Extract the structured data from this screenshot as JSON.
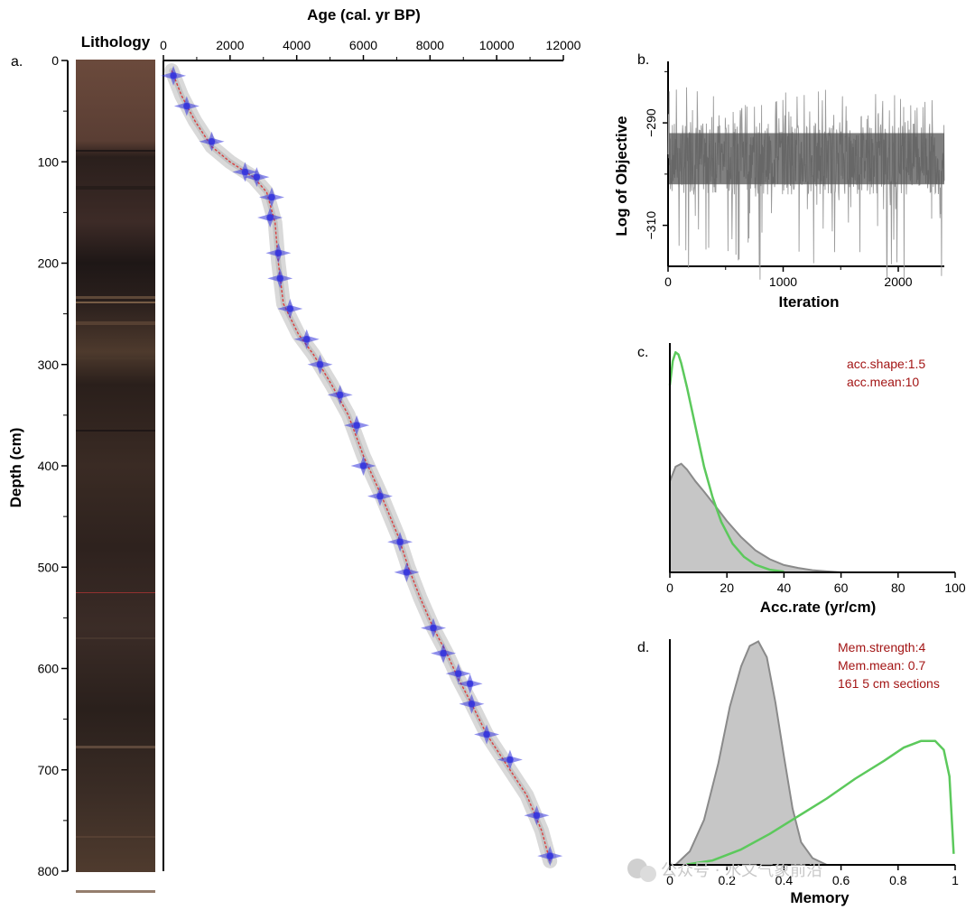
{
  "watermark": "公众号 · 水文气象前沿",
  "panels": {
    "a": {
      "letter": "a.",
      "lithology_label": "Lithology"
    },
    "b": {
      "letter": "b."
    },
    "c": {
      "letter": "c.",
      "annotations": [
        "acc.shape:1.5",
        "acc.mean:10"
      ]
    },
    "d": {
      "letter": "d.",
      "annotations": [
        "Mem.strength:4",
        "Mem.mean: 0.7",
        "161 5 cm sections"
      ]
    }
  },
  "colors": {
    "prior": "#5cc95c",
    "posterior_fill": "#c6c6c6",
    "posterior_line": "#8a8a8a",
    "dates": "#3333dd",
    "model": "#d94040",
    "annotation": "#a31515"
  },
  "chart_data": [
    {
      "id": "a",
      "type": "scatter",
      "title": "",
      "xlabel": "Age (cal. yr BP)",
      "ylabel": "Depth (cm)",
      "xlim": [
        0,
        12000
      ],
      "ylim": [
        800,
        0
      ],
      "x_ticks": [
        "0",
        "2000",
        "4000",
        "6000",
        "8000",
        "10000",
        "12000"
      ],
      "y_ticks": [
        "0",
        "100",
        "200",
        "300",
        "400",
        "500",
        "600",
        "700",
        "800"
      ],
      "x_tick_values": [
        0,
        2000,
        4000,
        6000,
        8000,
        10000,
        12000
      ],
      "y_tick_values": [
        0,
        100,
        200,
        300,
        400,
        500,
        600,
        700,
        800
      ],
      "dates": [
        {
          "age": 300,
          "depth": 15
        },
        {
          "age": 700,
          "depth": 45
        },
        {
          "age": 1450,
          "depth": 80
        },
        {
          "age": 2450,
          "depth": 110
        },
        {
          "age": 2800,
          "depth": 115
        },
        {
          "age": 3250,
          "depth": 135
        },
        {
          "age": 3200,
          "depth": 155
        },
        {
          "age": 3450,
          "depth": 190
        },
        {
          "age": 3500,
          "depth": 215
        },
        {
          "age": 3800,
          "depth": 245
        },
        {
          "age": 4300,
          "depth": 275
        },
        {
          "age": 4700,
          "depth": 300
        },
        {
          "age": 5300,
          "depth": 330
        },
        {
          "age": 5800,
          "depth": 360
        },
        {
          "age": 6000,
          "depth": 400
        },
        {
          "age": 6500,
          "depth": 430
        },
        {
          "age": 7100,
          "depth": 475
        },
        {
          "age": 7300,
          "depth": 505
        },
        {
          "age": 8100,
          "depth": 560
        },
        {
          "age": 8400,
          "depth": 585
        },
        {
          "age": 8850,
          "depth": 605
        },
        {
          "age": 9200,
          "depth": 615
        },
        {
          "age": 9250,
          "depth": 635
        },
        {
          "age": 9700,
          "depth": 665
        },
        {
          "age": 10400,
          "depth": 690
        },
        {
          "age": 11200,
          "depth": 745
        },
        {
          "age": 11600,
          "depth": 785
        }
      ],
      "model_x": [
        250,
        550,
        950,
        1450,
        2000,
        2700,
        3100,
        3350,
        3450,
        3600,
        4050,
        4500,
        5050,
        5550,
        6000,
        6550,
        7050,
        7350,
        7700,
        8100,
        8500,
        8850,
        9250,
        9700,
        10300,
        10900,
        11350,
        11600
      ],
      "model_y": [
        10,
        35,
        60,
        85,
        100,
        115,
        130,
        160,
        200,
        240,
        270,
        290,
        320,
        350,
        390,
        430,
        470,
        500,
        530,
        560,
        585,
        610,
        635,
        665,
        695,
        725,
        760,
        790
      ]
    },
    {
      "id": "b",
      "type": "line",
      "xlabel": "Iteration",
      "ylabel": "Log of Objective",
      "xlim": [
        0,
        2400
      ],
      "ylim": [
        -318,
        -278
      ],
      "x_ticks": [
        "0",
        "1000",
        "2000"
      ],
      "x_tick_values": [
        0,
        1000,
        2000
      ],
      "y_ticks": [
        "−290",
        "−310"
      ],
      "y_tick_values": [
        -290,
        -310
      ],
      "series_mean": -297,
      "band_min": -304,
      "band_max": -290,
      "spike_min": -321,
      "spike_max": -283
    },
    {
      "id": "c",
      "type": "area",
      "xlabel": "Acc.rate (yr/cm)",
      "ylabel": "",
      "xlim": [
        0,
        100
      ],
      "x_ticks": [
        "0",
        "20",
        "40",
        "60",
        "80",
        "100"
      ],
      "x_tick_values": [
        0,
        20,
        40,
        60,
        80,
        100
      ],
      "posterior_x": [
        0,
        2,
        4,
        6,
        9,
        12,
        16,
        20,
        25,
        30,
        35,
        40,
        45,
        50,
        55,
        60
      ],
      "posterior_y": [
        0.62,
        0.72,
        0.74,
        0.7,
        0.62,
        0.55,
        0.45,
        0.35,
        0.24,
        0.15,
        0.09,
        0.05,
        0.03,
        0.015,
        0.007,
        0
      ],
      "prior_x": [
        0,
        1,
        2,
        3,
        4,
        6,
        8,
        10,
        12,
        15,
        18,
        22,
        26,
        30,
        35,
        40
      ],
      "prior_y": [
        0.85,
        0.96,
        1.0,
        0.99,
        0.95,
        0.84,
        0.72,
        0.6,
        0.48,
        0.34,
        0.23,
        0.13,
        0.07,
        0.035,
        0.012,
        0.003
      ]
    },
    {
      "id": "d",
      "type": "area",
      "xlabel": "Memory",
      "ylabel": "",
      "xlim": [
        0,
        1
      ],
      "x_ticks": [
        "0",
        "0.2",
        "0.4",
        "0.6",
        "0.8",
        "1"
      ],
      "x_tick_values": [
        0,
        0.2,
        0.4,
        0.6,
        0.8,
        1
      ],
      "posterior_x": [
        0.02,
        0.07,
        0.12,
        0.17,
        0.21,
        0.25,
        0.28,
        0.31,
        0.34,
        0.37,
        0.4,
        0.43,
        0.46,
        0.5,
        0.55
      ],
      "posterior_y": [
        0,
        0.06,
        0.2,
        0.45,
        0.7,
        0.88,
        0.97,
        0.99,
        0.92,
        0.72,
        0.48,
        0.25,
        0.1,
        0.03,
        0
      ],
      "prior_x": [
        0.05,
        0.15,
        0.25,
        0.35,
        0.45,
        0.55,
        0.65,
        0.75,
        0.82,
        0.88,
        0.93,
        0.96,
        0.98,
        0.995
      ],
      "prior_y": [
        0,
        0.02,
        0.07,
        0.14,
        0.22,
        0.3,
        0.39,
        0.47,
        0.53,
        0.56,
        0.56,
        0.52,
        0.4,
        0.05
      ]
    }
  ]
}
